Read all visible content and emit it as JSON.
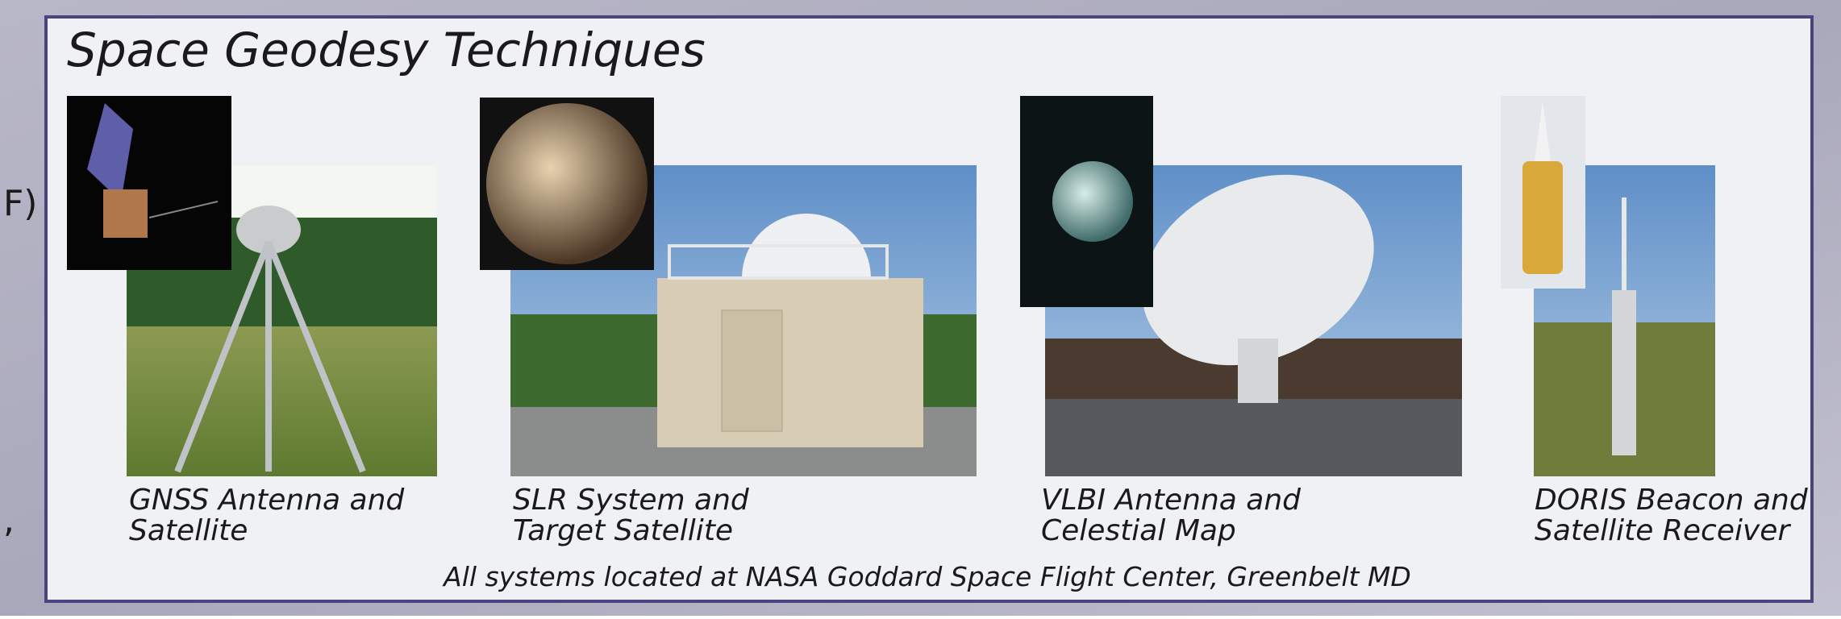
{
  "header": {
    "title": "Space Geodesy Techniques"
  },
  "side_fragments": [
    "F)",
    ","
  ],
  "techniques": [
    {
      "caption": [
        "GNSS Antenna and",
        "Satellite"
      ]
    },
    {
      "caption": [
        "SLR System and",
        "Target Satellite"
      ]
    },
    {
      "caption": [
        "VLBI Antenna and",
        "Celestial Map"
      ]
    },
    {
      "caption": [
        "DORIS Beacon and",
        "Satellite Receiver"
      ]
    }
  ],
  "footer": {
    "note": "All systems located at NASA Goddard Space Flight Center, Greenbelt MD"
  }
}
